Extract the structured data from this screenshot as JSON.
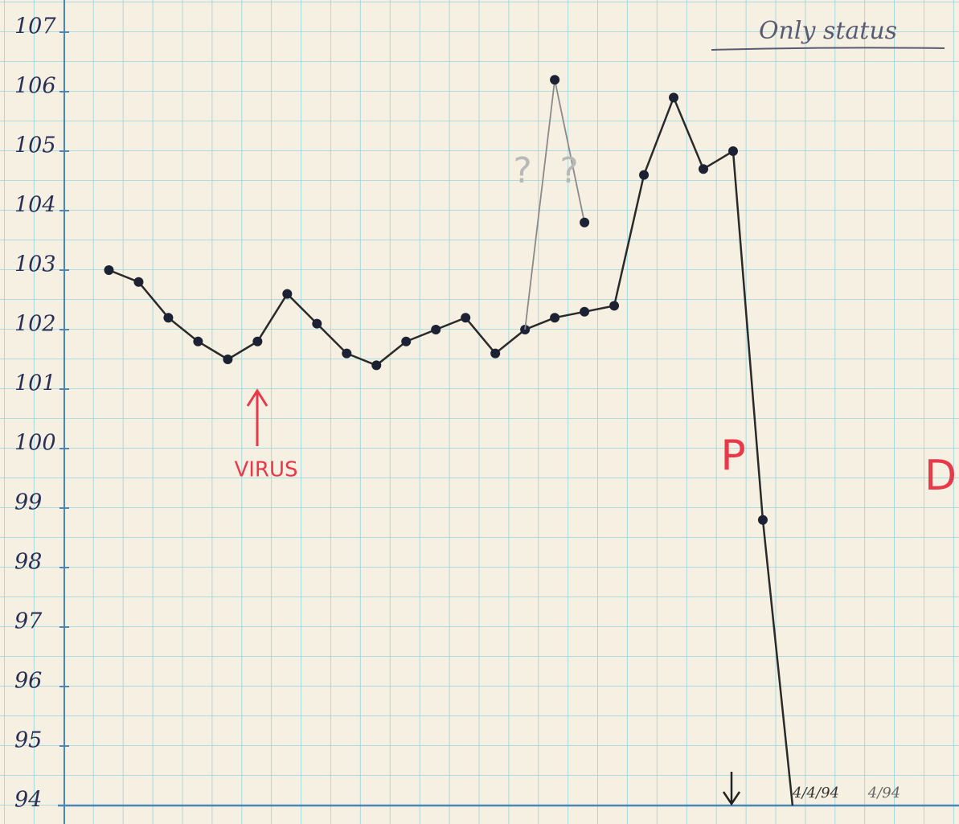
{
  "chart_data": {
    "type": "line",
    "ylim": [
      94,
      107
    ],
    "yticks": [
      94,
      95,
      96,
      97,
      98,
      99,
      100,
      101,
      102,
      103,
      104,
      105,
      106,
      107
    ],
    "xlim": [
      -1.5,
      28.6
    ],
    "grid": true,
    "series": [
      {
        "color": "#2a2a2a",
        "x": [
          0,
          1,
          2,
          3,
          4,
          5,
          6,
          7,
          8,
          9,
          10,
          11,
          12,
          13,
          14,
          15,
          16,
          17,
          18,
          19,
          20,
          21,
          22,
          23
        ],
        "values": [
          103.0,
          102.8,
          102.2,
          101.8,
          101.5,
          101.8,
          102.6,
          102.1,
          101.6,
          101.4,
          101.8,
          102.0,
          102.2,
          101.6,
          102.0,
          102.2,
          102.3,
          102.4,
          104.6,
          105.9,
          104.7,
          105.0,
          98.8,
          94.0
        ],
        "markers": [
          true,
          true,
          true,
          true,
          true,
          true,
          true,
          true,
          true,
          true,
          true,
          true,
          true,
          true,
          true,
          true,
          true,
          true,
          true,
          true,
          true,
          true,
          true,
          false
        ]
      },
      {
        "color": "#8a8a8a",
        "x": [
          14,
          15,
          16
        ],
        "values": [
          102.0,
          106.2,
          103.8
        ],
        "markers": [
          false,
          true,
          true
        ]
      }
    ],
    "annotations": [
      "Only status",
      "VIRUS",
      "?",
      "?",
      "P",
      "D",
      "4/4/94",
      "4/94"
    ]
  }
}
